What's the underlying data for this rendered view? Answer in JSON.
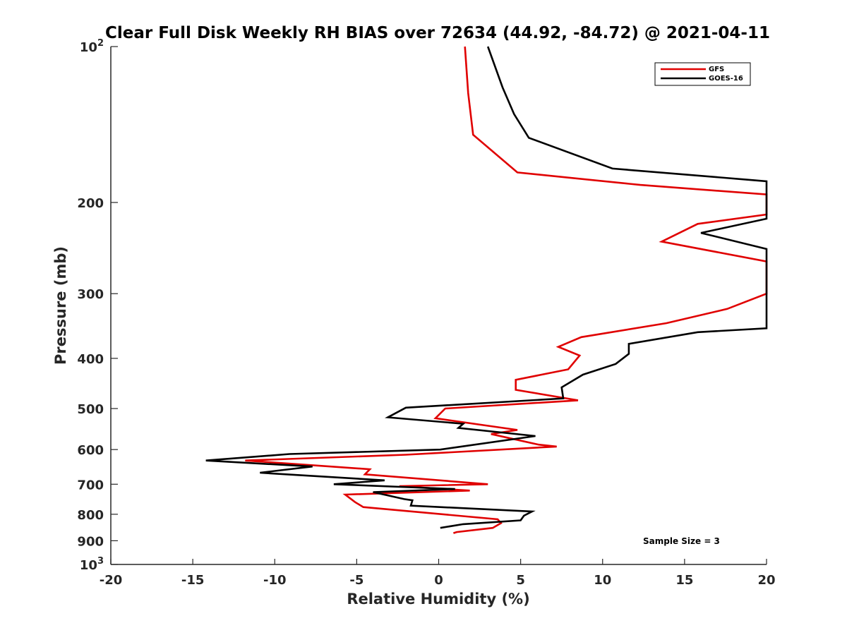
{
  "chart_data": {
    "type": "line",
    "title": "Clear Full Disk Weekly RH BIAS over 72634 (44.92, -84.72) @ 2021-04-11",
    "xlabel": "Relative Humidity (%)",
    "ylabel": "Pressure (mb)",
    "xlim": [
      -20,
      20
    ],
    "ylim": [
      100,
      1000
    ],
    "yscale": "log",
    "grid": false,
    "legend_position": "top-right",
    "x_ticks": [
      {
        "value": -20,
        "label": "-20"
      },
      {
        "value": -15,
        "label": "-15"
      },
      {
        "value": -10,
        "label": "-10"
      },
      {
        "value": -5,
        "label": "-5"
      },
      {
        "value": 0,
        "label": "0"
      },
      {
        "value": 5,
        "label": "5"
      },
      {
        "value": 10,
        "label": "10"
      },
      {
        "value": 15,
        "label": "15"
      },
      {
        "value": 20,
        "label": "20"
      }
    ],
    "y_ticks": [
      {
        "value": 100,
        "base": "10",
        "exp": "2"
      },
      {
        "value": 200,
        "label": "200"
      },
      {
        "value": 300,
        "label": "300"
      },
      {
        "value": 400,
        "label": "400"
      },
      {
        "value": 500,
        "label": "500"
      },
      {
        "value": 600,
        "label": "600"
      },
      {
        "value": 700,
        "label": "700"
      },
      {
        "value": 800,
        "label": "800"
      },
      {
        "value": 900,
        "label": "900"
      },
      {
        "value": 1000,
        "base": "10",
        "exp": "3"
      }
    ],
    "annotation": "Sample Size = 3",
    "series": [
      {
        "name": "GFS",
        "color": "#e00000",
        "points": [
          [
            1.6,
            100
          ],
          [
            1.8,
            123
          ],
          [
            2.1,
            148
          ],
          [
            4.8,
            175
          ],
          [
            12.3,
            185
          ],
          [
            20,
            193
          ],
          [
            20,
            211
          ],
          [
            15.8,
            220
          ],
          [
            13.6,
            238
          ],
          [
            20,
            260
          ],
          [
            20,
            300
          ],
          [
            17.6,
            321
          ],
          [
            13.9,
            342
          ],
          [
            8.7,
            364
          ],
          [
            7.3,
            380
          ],
          [
            8.6,
            395
          ],
          [
            7.9,
            420
          ],
          [
            4.7,
            440
          ],
          [
            4.7,
            460
          ],
          [
            8.5,
            482
          ],
          [
            0.4,
            500
          ],
          [
            -0.2,
            522
          ],
          [
            4.8,
            550
          ],
          [
            3.2,
            560
          ],
          [
            6.1,
            587
          ],
          [
            7.2,
            592
          ],
          [
            -2,
            614
          ],
          [
            -11.8,
            630
          ],
          [
            -4.2,
            655
          ],
          [
            -4.5,
            670
          ],
          [
            3.0,
            700
          ],
          [
            -2.4,
            706
          ],
          [
            1.9,
            720
          ],
          [
            -5.7,
            733
          ],
          [
            -5.1,
            758
          ],
          [
            -4.6,
            775
          ],
          [
            3.6,
            818
          ],
          [
            3.8,
            832
          ],
          [
            3.3,
            850
          ],
          [
            1.1,
            866
          ],
          [
            0.9,
            870
          ]
        ]
      },
      {
        "name": "GOES-16",
        "color": "#000000",
        "points": [
          [
            3.0,
            100
          ],
          [
            3.9,
            120
          ],
          [
            4.6,
            135
          ],
          [
            5.5,
            150
          ],
          [
            10.6,
            172
          ],
          [
            20,
            182
          ],
          [
            20,
            215
          ],
          [
            16.0,
            229
          ],
          [
            20,
            246
          ],
          [
            20,
            350
          ],
          [
            15.8,
            356
          ],
          [
            11.6,
            375
          ],
          [
            11.6,
            392
          ],
          [
            10.8,
            410
          ],
          [
            8.8,
            430
          ],
          [
            7.5,
            455
          ],
          [
            7.6,
            478
          ],
          [
            -2,
            498
          ],
          [
            -3.1,
            520
          ],
          [
            1.5,
            535
          ],
          [
            1.2,
            545
          ],
          [
            5.9,
            565
          ],
          [
            0.1,
            600
          ],
          [
            -9.1,
            612
          ],
          [
            -14.2,
            630
          ],
          [
            -7.7,
            647
          ],
          [
            -10.9,
            665
          ],
          [
            -3.3,
            688
          ],
          [
            -6.4,
            700
          ],
          [
            1.0,
            715
          ],
          [
            -4.0,
            725
          ],
          [
            -2.1,
            748
          ],
          [
            -1.6,
            752
          ],
          [
            -1.7,
            770
          ],
          [
            5.7,
            790
          ],
          [
            5.2,
            805
          ],
          [
            5.0,
            822
          ],
          [
            1.5,
            836
          ],
          [
            0.1,
            850
          ]
        ]
      }
    ]
  }
}
